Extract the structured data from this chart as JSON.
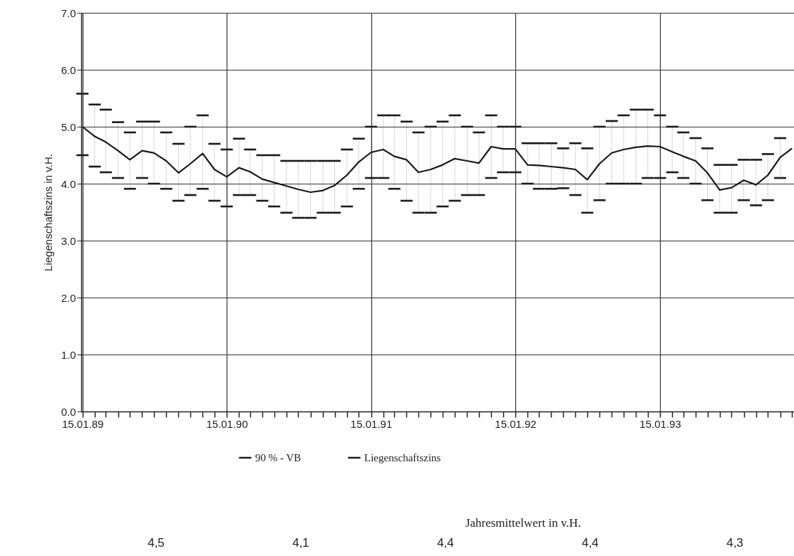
{
  "chart_data": {
    "type": "line",
    "ylabel": "Liegenschaftszins in v.H.",
    "x": [
      "1989-01-15",
      "1989-02-15",
      "1989-03-15",
      "1989-04-15",
      "1989-05-15",
      "1989-06-15",
      "1989-07-15",
      "1989-08-15",
      "1989-09-15",
      "1989-10-15",
      "1989-11-15",
      "1989-12-15",
      "1990-01-15",
      "1990-02-15",
      "1990-03-15",
      "1990-04-15",
      "1990-05-15",
      "1990-06-15",
      "1990-07-15",
      "1990-08-15",
      "1990-09-15",
      "1990-10-15",
      "1990-11-15",
      "1990-12-15",
      "1991-01-15",
      "1991-02-15",
      "1991-03-15",
      "1991-04-15",
      "1991-05-15",
      "1991-06-15",
      "1991-07-15",
      "1991-08-15",
      "1991-09-15",
      "1991-10-15",
      "1991-11-15",
      "1991-12-15",
      "1992-01-15",
      "1992-02-15",
      "1992-03-15",
      "1992-04-15",
      "1992-05-15",
      "1992-06-15",
      "1992-07-15",
      "1992-08-15",
      "1992-09-15",
      "1992-10-15",
      "1992-11-15",
      "1992-12-15",
      "1993-01-15",
      "1993-02-15",
      "1993-03-15",
      "1993-04-15",
      "1993-05-15",
      "1993-06-15",
      "1993-07-15",
      "1993-08-15",
      "1993-09-15",
      "1993-10-15",
      "1993-11-15",
      "1993-12-15"
    ],
    "series": [
      {
        "name": "Liegenschaftszins",
        "type": "line",
        "color": "#1a1a1a",
        "values": [
          5.0,
          4.83,
          4.73,
          4.58,
          4.42,
          4.58,
          4.54,
          4.4,
          4.19,
          4.35,
          4.53,
          4.25,
          4.12,
          4.28,
          4.21,
          4.08,
          4.02,
          3.96,
          3.9,
          3.85,
          3.88,
          3.97,
          4.15,
          4.38,
          4.55,
          4.6,
          4.48,
          4.42,
          4.2,
          4.25,
          4.33,
          4.44,
          4.4,
          4.36,
          4.65,
          4.61,
          4.61,
          4.33,
          4.32,
          4.3,
          4.28,
          4.25,
          4.07,
          4.35,
          4.54,
          4.6,
          4.64,
          4.66,
          4.65,
          4.56,
          4.48,
          4.4,
          4.19,
          3.89,
          3.93,
          4.06,
          3.98,
          4.15,
          4.46,
          4.62
        ],
        "errors": [
          [
            4.5,
            5.58
          ],
          [
            4.3,
            5.39
          ],
          [
            4.2,
            5.3
          ],
          [
            4.1,
            5.08
          ],
          [
            3.91,
            4.9
          ],
          [
            4.1,
            5.09
          ],
          [
            4.0,
            5.09
          ],
          [
            3.91,
            4.9
          ],
          [
            3.7,
            4.7
          ],
          [
            3.8,
            5.0
          ],
          [
            3.91,
            5.2
          ],
          [
            3.7,
            4.7
          ],
          [
            3.6,
            4.6
          ],
          [
            3.8,
            4.79
          ],
          [
            3.8,
            4.6
          ],
          [
            3.7,
            4.5
          ],
          [
            3.6,
            4.5
          ],
          [
            3.49,
            4.4
          ],
          [
            3.4,
            4.4
          ],
          [
            3.4,
            4.4
          ],
          [
            3.49,
            4.4
          ],
          [
            3.49,
            4.4
          ],
          [
            3.6,
            4.6
          ],
          [
            3.91,
            4.79
          ],
          [
            4.1,
            5.0
          ],
          [
            4.1,
            5.2
          ],
          [
            3.91,
            5.2
          ],
          [
            3.7,
            5.09
          ],
          [
            3.49,
            4.9
          ],
          [
            3.49,
            5.0
          ],
          [
            3.6,
            5.09
          ],
          [
            3.7,
            5.2
          ],
          [
            3.8,
            5.0
          ],
          [
            3.8,
            4.9
          ],
          [
            4.1,
            5.2
          ],
          [
            4.2,
            5.0
          ],
          [
            4.2,
            5.0
          ],
          [
            4.0,
            4.71
          ],
          [
            3.91,
            4.71
          ],
          [
            3.91,
            4.71
          ],
          [
            3.92,
            4.62
          ],
          [
            3.8,
            4.71
          ],
          [
            3.49,
            4.62
          ],
          [
            3.71,
            5.0
          ],
          [
            4.0,
            5.1
          ],
          [
            4.0,
            5.2
          ],
          [
            4.0,
            5.3
          ],
          [
            4.1,
            5.3
          ],
          [
            4.1,
            5.2
          ],
          [
            4.2,
            5.0
          ],
          [
            4.1,
            4.9
          ],
          [
            4.0,
            4.8
          ],
          [
            3.71,
            4.62
          ],
          [
            3.49,
            4.33
          ],
          [
            3.49,
            4.33
          ],
          [
            3.71,
            4.42
          ],
          [
            3.62,
            4.42
          ],
          [
            3.71,
            4.52
          ],
          [
            4.1,
            4.8
          ],
          null
        ]
      }
    ],
    "xlim": [
      "1989-01-12",
      "1993-12-20"
    ],
    "xticks": [
      {
        "value": "1989-01-15",
        "label": "15.01.89"
      },
      {
        "value": "1989-02-15",
        "label": null
      },
      {
        "value": "1989-03-15",
        "label": null
      },
      {
        "value": "1989-04-15",
        "label": null
      },
      {
        "value": "1989-05-15",
        "label": null
      },
      {
        "value": "1989-06-15",
        "label": null
      },
      {
        "value": "1989-07-15",
        "label": null
      },
      {
        "value": "1989-08-15",
        "label": null
      },
      {
        "value": "1989-09-15",
        "label": null
      },
      {
        "value": "1989-10-15",
        "label": null
      },
      {
        "value": "1989-11-15",
        "label": null
      },
      {
        "value": "1989-12-15",
        "label": null
      },
      {
        "value": "1990-01-15",
        "label": "15.01.90"
      },
      {
        "value": "1990-02-15",
        "label": null
      },
      {
        "value": "1990-03-15",
        "label": null
      },
      {
        "value": "1990-04-15",
        "label": null
      },
      {
        "value": "1990-05-15",
        "label": null
      },
      {
        "value": "1990-06-15",
        "label": null
      },
      {
        "value": "1990-07-15",
        "label": null
      },
      {
        "value": "1990-08-15",
        "label": null
      },
      {
        "value": "1990-09-15",
        "label": null
      },
      {
        "value": "1990-10-15",
        "label": null
      },
      {
        "value": "1990-11-15",
        "label": null
      },
      {
        "value": "1990-12-15",
        "label": null
      },
      {
        "value": "1991-01-15",
        "label": "15.01.91"
      },
      {
        "value": "1991-02-15",
        "label": null
      },
      {
        "value": "1991-03-15",
        "label": null
      },
      {
        "value": "1991-04-15",
        "label": null
      },
      {
        "value": "1991-05-15",
        "label": null
      },
      {
        "value": "1991-06-15",
        "label": null
      },
      {
        "value": "1991-07-15",
        "label": null
      },
      {
        "value": "1991-08-15",
        "label": null
      },
      {
        "value": "1991-09-15",
        "label": null
      },
      {
        "value": "1991-10-15",
        "label": null
      },
      {
        "value": "1991-11-15",
        "label": null
      },
      {
        "value": "1991-12-15",
        "label": null
      },
      {
        "value": "1992-01-15",
        "label": "15.01.92"
      },
      {
        "value": "1992-02-15",
        "label": null
      },
      {
        "value": "1992-03-15",
        "label": null
      },
      {
        "value": "1992-04-15",
        "label": null
      },
      {
        "value": "1992-05-15",
        "label": null
      },
      {
        "value": "1992-06-15",
        "label": null
      },
      {
        "value": "1992-07-15",
        "label": null
      },
      {
        "value": "1992-08-15",
        "label": null
      },
      {
        "value": "1992-09-15",
        "label": null
      },
      {
        "value": "1992-10-15",
        "label": null
      },
      {
        "value": "1992-11-15",
        "label": null
      },
      {
        "value": "1992-12-15",
        "label": null
      },
      {
        "value": "1993-01-15",
        "label": "15.01.93"
      },
      {
        "value": "1993-02-15",
        "label": null
      },
      {
        "value": "1993-03-15",
        "label": null
      },
      {
        "value": "1993-04-15",
        "label": null
      },
      {
        "value": "1993-05-15",
        "label": null
      },
      {
        "value": "1993-06-15",
        "label": null
      },
      {
        "value": "1993-07-15",
        "label": null
      },
      {
        "value": "1993-08-15",
        "label": null
      },
      {
        "value": "1993-09-15",
        "label": null
      },
      {
        "value": "1993-10-15",
        "label": null
      },
      {
        "value": "1993-11-15",
        "label": null
      },
      {
        "value": "1993-12-15",
        "label": null
      }
    ],
    "ylim": [
      0,
      7
    ],
    "yticks": [
      {
        "value": 0,
        "label": "0.0"
      },
      {
        "value": 1,
        "label": "1.0"
      },
      {
        "value": 2,
        "label": "2.0"
      },
      {
        "value": 3,
        "label": "3.0"
      },
      {
        "value": 4,
        "label": "4.0"
      },
      {
        "value": 5,
        "label": "5.0"
      },
      {
        "value": 6,
        "label": "6.0"
      },
      {
        "value": 7,
        "label": "7.0"
      }
    ],
    "grid": true,
    "legend": "bottom",
    "annotations": [
      "90 % - VB",
      "Jahresmittelwert in v.H.",
      "4,5",
      "4,1",
      "4,4",
      "4,4",
      "4,3"
    ]
  }
}
